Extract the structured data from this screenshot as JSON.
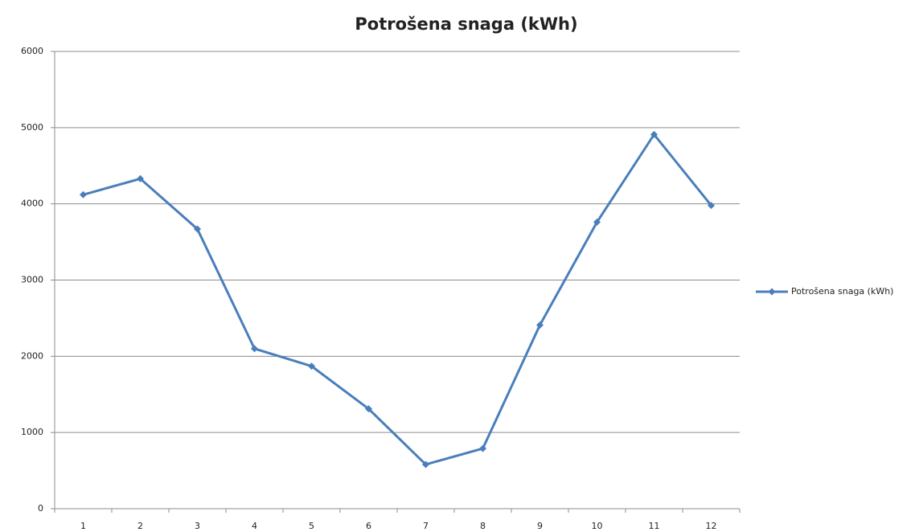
{
  "chart_data": {
    "type": "line",
    "title": "Potrošena snaga (kWh)",
    "categories": [
      "1",
      "2",
      "3",
      "4",
      "5",
      "6",
      "7",
      "8",
      "9",
      "10",
      "11",
      "12"
    ],
    "series": [
      {
        "name": "Potrošena snaga (kWh)",
        "color": "#4a7ebb",
        "values": [
          4120,
          4330,
          3670,
          2100,
          1870,
          1310,
          580,
          790,
          2410,
          3760,
          4910,
          3980
        ]
      }
    ],
    "ylim": [
      0,
      6000
    ],
    "yticks": [
      0,
      1000,
      2000,
      3000,
      4000,
      5000,
      6000
    ],
    "grid": true,
    "legend": "right"
  }
}
